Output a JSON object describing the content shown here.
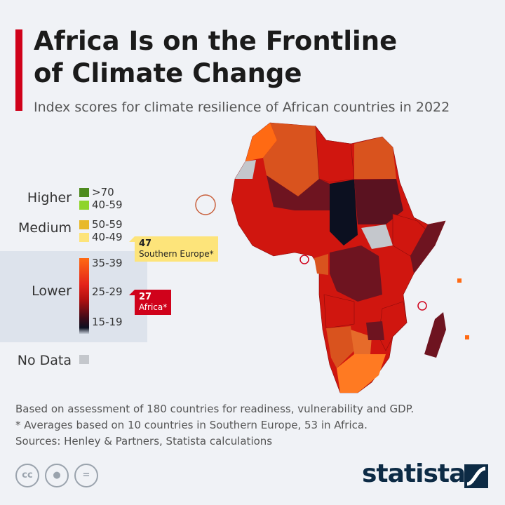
{
  "header": {
    "title_line1": "Africa Is on the Frontline",
    "title_line2": "of Climate Change",
    "subtitle": "Index scores for climate resilience of African countries in 2022"
  },
  "legend": {
    "higher": {
      "label": "Higher",
      "ranges": [
        ">70",
        "40-59"
      ],
      "colors": [
        "#4e8a1e",
        "#8fd42b"
      ]
    },
    "medium": {
      "label": "Medium",
      "ranges": [
        "50-59",
        "40-49"
      ],
      "colors": [
        "#e8b92a",
        "#fde47a"
      ]
    },
    "lower": {
      "label": "Lower",
      "ranges": [
        "35-39",
        "25-29",
        "15-19"
      ],
      "colors": [
        "#ff6a13",
        "#d0021b",
        "#0c1020"
      ]
    },
    "no_data": {
      "label": "No Data",
      "color": "#c4c7cc"
    }
  },
  "callouts": {
    "southern_europe": {
      "value": "47",
      "label": "Southern Europe*"
    },
    "africa": {
      "value": "27",
      "label": "Africa*"
    }
  },
  "footnotes": [
    "Based on assessment of 180 countries for readiness, vulnerability and GDP.",
    "* Averages based on 10 countries in Southern Europe, 53 in Africa.",
    "Sources: Henley & Partners, Statista calculations"
  ],
  "footer": {
    "license_icons": [
      "cc-icon",
      "attribution-icon",
      "no-derivatives-icon"
    ],
    "cc_text": "cc",
    "brand": "statista"
  }
}
